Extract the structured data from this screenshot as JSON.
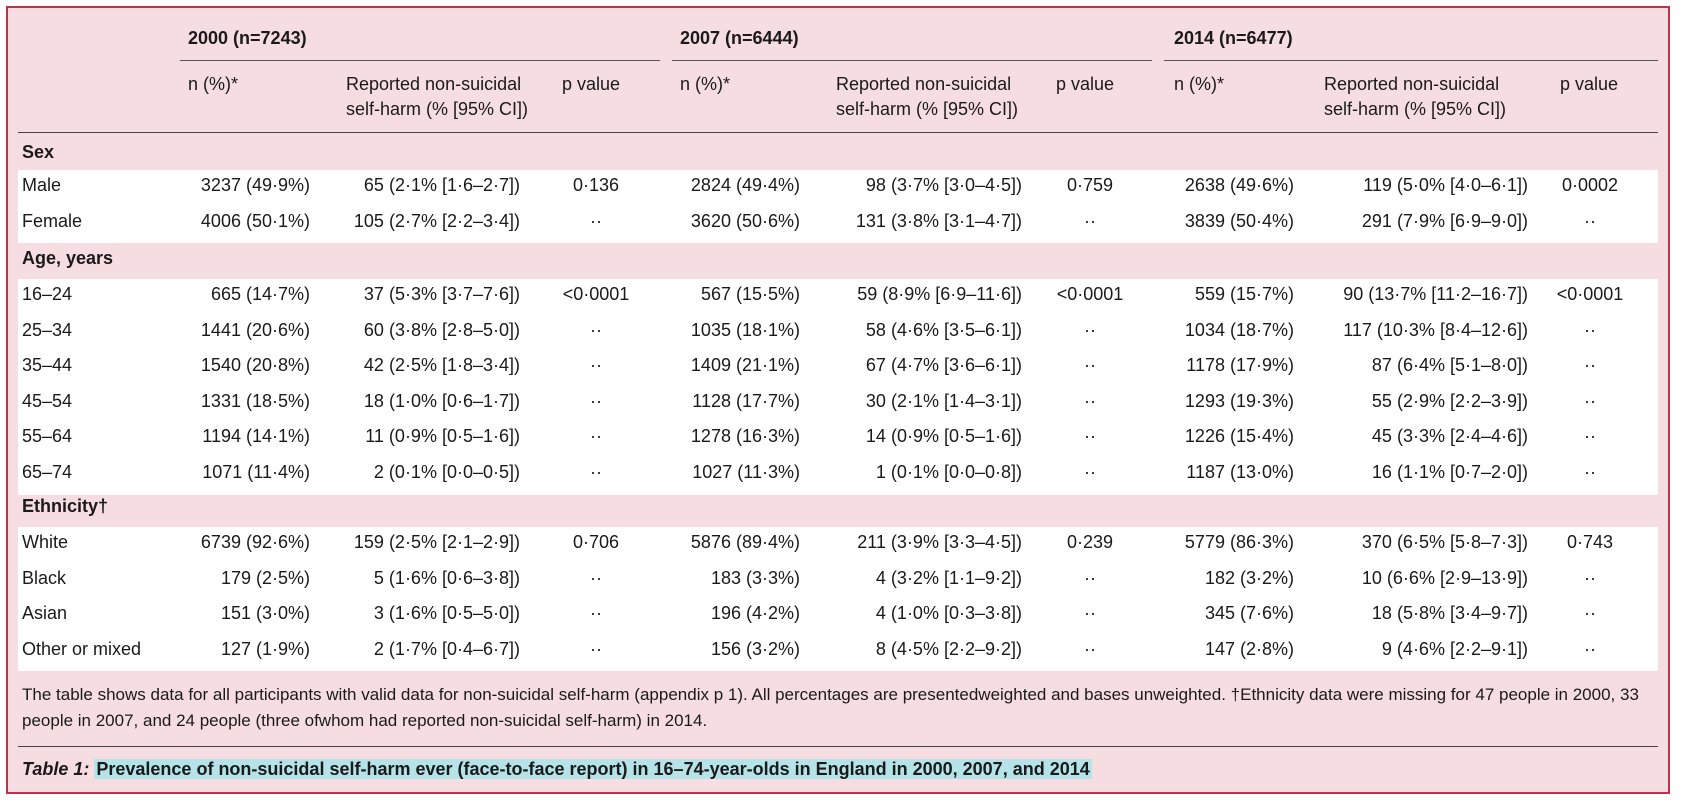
{
  "groups": [
    {
      "label": "2000 (n=7243)"
    },
    {
      "label": "2007 (n=6444)"
    },
    {
      "label": "2014 (n=6477)"
    }
  ],
  "subheaders": {
    "n": "n (%)*",
    "nssh_line1": "Reported non-suicidal",
    "nssh_line2": "self-harm (% [95% CI])",
    "p": "p value"
  },
  "sections": [
    {
      "title": "Sex",
      "rows": [
        {
          "label": "Male",
          "cells": [
            "3237 (49·9%)",
            "65 (2·1% [1·6–2·7])",
            "0·136",
            "2824 (49·4%)",
            "98 (3·7% [3·0–4·5])",
            "0·759",
            "2638 (49·6%)",
            "119 (5·0% [4·0–6·1])",
            "0·0002"
          ]
        },
        {
          "label": "Female",
          "cells": [
            "4006 (50·1%)",
            "105 (2·7% [2·2–3·4])",
            "··",
            "3620 (50·6%)",
            "131 (3·8% [3·1–4·7])",
            "··",
            "3839 (50·4%)",
            "291 (7·9% [6·9–9·0])",
            "··"
          ]
        }
      ]
    },
    {
      "title": "Age, years",
      "rows": [
        {
          "label": "16–24",
          "cells": [
            "665 (14·7%)",
            "37 (5·3% [3·7–7·6])",
            "<0·0001",
            "567 (15·5%)",
            "59 (8·9% [6·9–11·6])",
            "<0·0001",
            "559 (15·7%)",
            "90 (13·7% [11·2–16·7])",
            "<0·0001"
          ]
        },
        {
          "label": "25–34",
          "cells": [
            "1441 (20·6%)",
            "60 (3·8% [2·8–5·0])",
            "··",
            "1035 (18·1%)",
            "58 (4·6% [3·5–6·1])",
            "··",
            "1034 (18·7%)",
            "117 (10·3% [8·4–12·6])",
            "··"
          ]
        },
        {
          "label": "35–44",
          "cells": [
            "1540 (20·8%)",
            "42 (2·5% [1·8–3·4])",
            "··",
            "1409 (21·1%)",
            "67 (4·7% [3·6–6·1])",
            "··",
            "1178 (17·9%)",
            "87 (6·4% [5·1–8·0])",
            "··"
          ]
        },
        {
          "label": "45–54",
          "cells": [
            "1331 (18·5%)",
            "18 (1·0% [0·6–1·7])",
            "··",
            "1128 (17·7%)",
            "30 (2·1% [1·4–3·1])",
            "··",
            "1293 (19·3%)",
            "55 (2·9% [2·2–3·9])",
            "··"
          ]
        },
        {
          "label": "55–64",
          "cells": [
            "1194 (14·1%)",
            "11 (0·9% [0·5–1·6])",
            "··",
            "1278 (16·3%)",
            "14 (0·9% [0·5–1·6])",
            "··",
            "1226 (15·4%)",
            "45 (3·3% [2·4–4·6])",
            "··"
          ]
        },
        {
          "label": "65–74",
          "cells": [
            "1071 (11·4%)",
            "2 (0·1% [0·0–0·5])",
            "··",
            "1027 (11·3%)",
            "1 (0·1% [0·0–0·8])",
            "··",
            "1187 (13·0%)",
            "16 (1·1% [0·7–2·0])",
            "··"
          ]
        }
      ]
    },
    {
      "title": "Ethnicity†",
      "rows": [
        {
          "label": "White",
          "cells": [
            "6739 (92·6%)",
            "159 (2·5% [2·1–2·9])",
            "0·706",
            "5876 (89·4%)",
            "211 (3·9% [3·3–4·5])",
            "0·239",
            "5779 (86·3%)",
            "370 (6·5% [5·8–7·3])",
            "0·743"
          ]
        },
        {
          "label": "Black",
          "cells": [
            "179 (2·5%)",
            "5 (1·6% [0·6–3·8])",
            "··",
            "183 (3·3%)",
            "4 (3·2% [1·1–9·2])",
            "··",
            "182 (3·2%)",
            "10 (6·6% [2·9–13·9])",
            "··"
          ]
        },
        {
          "label": "Asian",
          "cells": [
            "151 (3·0%)",
            "3 (1·6% [0·5–5·0])",
            "··",
            "196 (4·2%)",
            "4 (1·0% [0·3–3·8])",
            "··",
            "345 (7·6%)",
            "18 (5·8% [3·4–9·7])",
            "··"
          ]
        },
        {
          "label": "Other or mixed",
          "cells": [
            "127 (1·9%)",
            "2 (1·7% [0·4–6·7])",
            "··",
            "156 (3·2%)",
            "8 (4·5% [2·2–9·2])",
            "··",
            "147 (2·8%)",
            "9 (4·6% [2·2–9·1])",
            "··"
          ]
        }
      ]
    }
  ],
  "footnote": "The table shows data for all participants with valid data for non-suicidal self-harm (appendix p 1). All percentages are presentedweighted and bases unweighted. †Ethnicity data were missing for 47 people in 2000, 33 people in 2007, and 24 people (three ofwhom had reported non-suicidal self-harm) in 2014.",
  "caption": {
    "label": "Table 1:",
    "text": "Prevalence of non-suicidal self-harm ever (face-to-face report) in 16–74-year-olds in England in 2000, 2007, and 2014"
  }
}
